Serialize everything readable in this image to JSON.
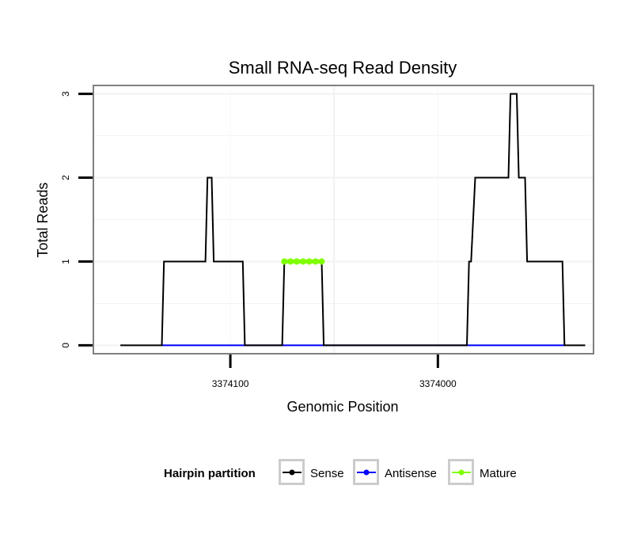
{
  "chart_data": {
    "type": "line",
    "title": "Small RNA-seq Read Density",
    "xlabel": "Genomic Position",
    "ylabel": "Total Reads",
    "x_reversed": true,
    "xlim": [
      3374166,
      3373925
    ],
    "ylim": [
      -0.1,
      3.1
    ],
    "x_ticks": [
      3374100,
      3374000
    ],
    "x_tick_labels": [
      "3374100",
      "3374000"
    ],
    "y_ticks": [
      0,
      1,
      2,
      3
    ],
    "y_tick_labels": [
      "0",
      "1",
      "2",
      "3"
    ],
    "grid": true,
    "legend": {
      "title": "Hairpin partition",
      "position": "bottom",
      "entries": [
        {
          "label": "Sense",
          "color": "#000000"
        },
        {
          "label": "Antisense",
          "color": "#0000ff"
        },
        {
          "label": "Mature",
          "color": "#7fff00"
        }
      ]
    },
    "series": [
      {
        "name": "Sense",
        "color": "#000000",
        "x": [
          3374153,
          3374133,
          3374132,
          3374112,
          3374111,
          3374109,
          3374108,
          3374094,
          3374093,
          3374075,
          3374074,
          3374056,
          3374055,
          3374036,
          3373986,
          3373985,
          3373984,
          3373982,
          3373966,
          3373965,
          3373962,
          3373961,
          3373958,
          3373957,
          3373940,
          3373939,
          3373929
        ],
        "y": [
          0,
          0,
          1,
          1,
          2,
          2,
          1,
          1,
          0,
          0,
          1,
          1,
          0,
          0,
          0,
          1,
          1,
          2,
          2,
          3,
          3,
          2,
          2,
          1,
          1,
          0,
          0
        ]
      },
      {
        "name": "Antisense",
        "color": "#0000ff",
        "x": [
          3374133,
          3374093,
          3374075,
          3374055,
          3373986,
          3373939
        ],
        "y": [
          0,
          0,
          0,
          0,
          0,
          0
        ]
      },
      {
        "name": "Mature",
        "color": "#7fff00",
        "x": [
          3374074,
          3374071,
          3374068,
          3374065,
          3374062,
          3374059,
          3374056
        ],
        "y": [
          1,
          1,
          1,
          1,
          1,
          1,
          1
        ]
      }
    ]
  }
}
